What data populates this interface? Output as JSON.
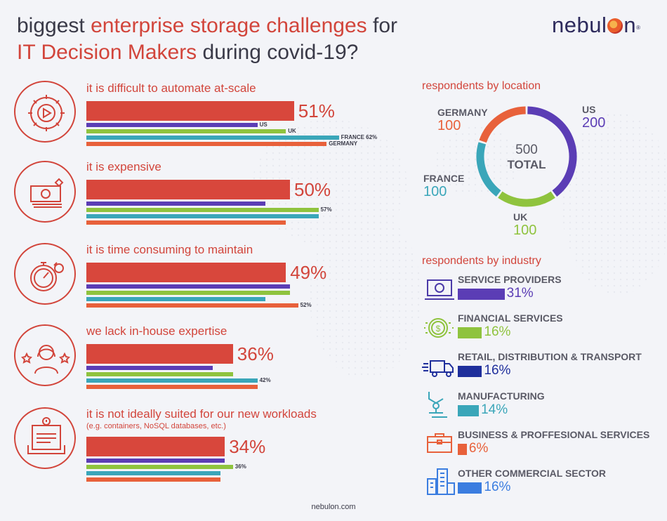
{
  "header": {
    "title_1_plain": "biggest ",
    "title_1_highlight": "enterprise storage challenges",
    "title_1_end": " for",
    "title_2_highlight": "IT Decision Makers",
    "title_2_end": " during covid-19?",
    "logo_pre": "nebul",
    "logo_post": "n",
    "logo_reg": "®"
  },
  "colors": {
    "accent_red": "#d8473c",
    "us": "#5b3db5",
    "uk": "#8fc33e",
    "france": "#3aa6b9",
    "germany": "#e8613b"
  },
  "chart_data": [
    {
      "type": "bar",
      "title": "biggest enterprise storage challenges for IT Decision Makers during covid-19?",
      "categories": [
        "it is difficult to automate at-scale",
        "it is expensive",
        "it is time consuming to maintain",
        "we lack in-house expertise",
        "it is not ideally suited for our new workloads"
      ],
      "subtitles": [
        "",
        "",
        "",
        "",
        "(e.g. containers, NoSQL databases, etc.)"
      ],
      "overall": {
        "values": [
          51,
          50,
          49,
          36,
          34
        ],
        "labels": [
          "51%",
          "50%",
          "49%",
          "36%",
          "34%"
        ]
      },
      "series": [
        {
          "name": "US",
          "color": "#5b3db5",
          "values": [
            42,
            44,
            50,
            31,
            34
          ]
        },
        {
          "name": "UK",
          "color": "#8fc33e",
          "values": [
            49,
            57,
            50,
            36,
            36
          ]
        },
        {
          "name": "FRANCE",
          "color": "#3aa6b9",
          "values": [
            62,
            57,
            44,
            42,
            33
          ]
        },
        {
          "name": "GERMANY",
          "color": "#e8613b",
          "values": [
            59,
            49,
            52,
            42,
            33
          ]
        }
      ],
      "point_labels": [
        [
          {
            "series": 0,
            "text": "US"
          },
          {
            "series": 1,
            "text": "UK"
          },
          {
            "series": 2,
            "text": "FRANCE 62%"
          },
          {
            "series": 3,
            "text": "GERMANY"
          }
        ],
        [
          {
            "series": 1,
            "text": "57%"
          }
        ],
        [
          {
            "series": 3,
            "text": "52%"
          }
        ],
        [
          {
            "series": 2,
            "text": "42%"
          }
        ],
        [
          {
            "series": 1,
            "text": "36%"
          }
        ]
      ],
      "xlim": [
        0,
        100
      ]
    },
    {
      "type": "pie",
      "title": "respondents by location",
      "categories": [
        "US",
        "UK",
        "FRANCE",
        "GERMANY"
      ],
      "values": [
        200,
        100,
        100,
        100
      ],
      "colors": [
        "#5b3db5",
        "#8fc33e",
        "#3aa6b9",
        "#e8613b"
      ],
      "center_value": "500",
      "center_label": "TOTAL"
    },
    {
      "type": "bar",
      "title": "respondents by industry",
      "categories": [
        "SERVICE PROVIDERS",
        "FINANCIAL SERVICES",
        "RETAIL, DISTRIBUTION & TRANSPORT",
        "MANUFACTURING",
        "BUSINESS & PROFFESIONAL SERVICES",
        "OTHER COMMERCIAL SECTOR"
      ],
      "values": [
        31,
        16,
        16,
        14,
        6,
        16
      ],
      "labels": [
        "31%",
        "16%",
        "16%",
        "14%",
        "6%",
        "16%"
      ],
      "colors": [
        "#5b3db5",
        "#8fc33e",
        "#1f2f9c",
        "#3aa6b9",
        "#e8613b",
        "#3b7de0"
      ]
    }
  ],
  "footer": {
    "url": "nebulon.com"
  }
}
